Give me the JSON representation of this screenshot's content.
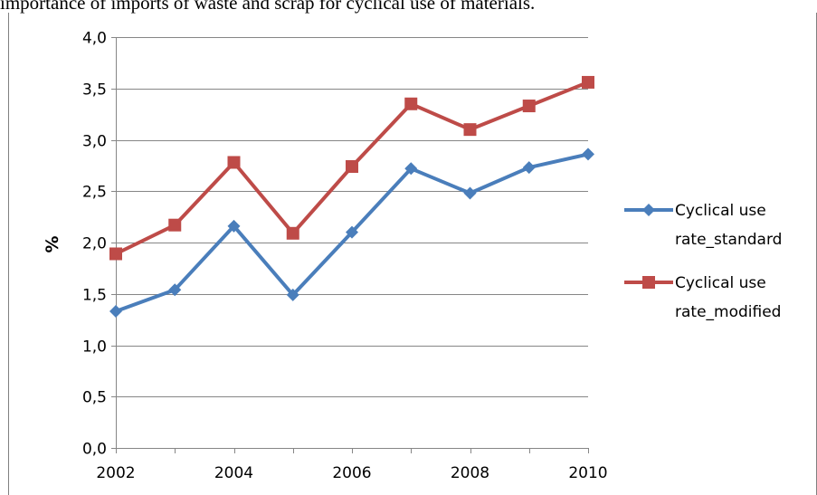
{
  "caption": "importance of imports of waste and scrap for cyclical use of materials.",
  "chart_data": {
    "type": "line",
    "title": "",
    "xlabel": "",
    "ylabel": "%",
    "x": [
      2002,
      2003,
      2004,
      2005,
      2006,
      2007,
      2008,
      2009,
      2010
    ],
    "x_tick_labels": [
      "2002",
      "2004",
      "2006",
      "2008",
      "2010"
    ],
    "ylim": [
      0,
      4
    ],
    "y_tick_labels": [
      "0,0",
      "0,5",
      "1,0",
      "1,5",
      "2,0",
      "2,5",
      "3,0",
      "3,5",
      "4,0"
    ],
    "grid": true,
    "legend_position": "right",
    "series": [
      {
        "name_lines": [
          "Cyclical use",
          "rate_standard"
        ],
        "color": "#4a7ebb",
        "marker": "diamond",
        "values": [
          1.33,
          1.54,
          2.16,
          1.49,
          2.1,
          2.72,
          2.48,
          2.73,
          2.86
        ]
      },
      {
        "name_lines": [
          "Cyclical use",
          "rate_modified"
        ],
        "color": "#be4b48",
        "marker": "square",
        "values": [
          1.89,
          2.17,
          2.78,
          2.09,
          2.74,
          3.35,
          3.1,
          3.33,
          3.56
        ]
      }
    ]
  }
}
